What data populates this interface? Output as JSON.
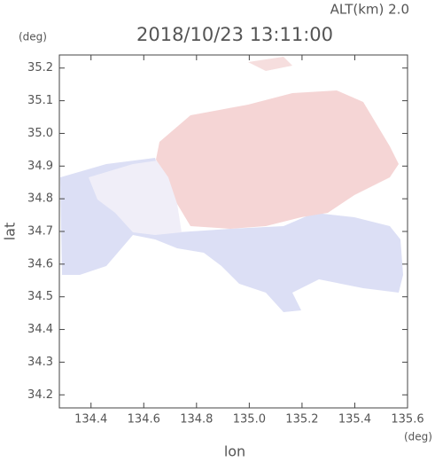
{
  "chart_data": {
    "type": "map",
    "title": "2018/10/23 13:11:00",
    "subtitle": "ALT(km) 2.0",
    "x_label": "lon",
    "y_label": "lat",
    "x_unit": "(deg)",
    "y_unit": "(deg)",
    "xlim": [
      134.28,
      135.6
    ],
    "ylim": [
      34.16,
      35.24
    ],
    "xticks": [
      134.4,
      134.6,
      134.8,
      {
        "value": 135,
        "label": "135.0"
      },
      135.2,
      135.4,
      135.6
    ],
    "yticks": [
      34.2,
      34.3,
      34.4,
      34.5,
      34.6,
      34.7,
      34.8,
      34.9,
      {
        "value": 35,
        "label": "35.0"
      },
      35.1,
      35.2
    ]
  }
}
